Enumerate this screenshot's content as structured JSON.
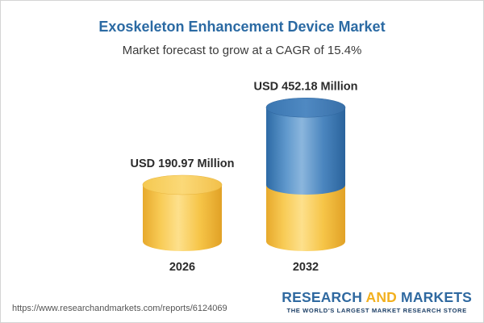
{
  "chart_data": {
    "type": "bar",
    "style": "3d-cylinder",
    "title": "Exoskeleton Enhancement Device Market",
    "subtitle": "Market forecast to grow at a CAGR of 15.4%",
    "categories": [
      "2026",
      "2032"
    ],
    "values": [
      190.97,
      452.18
    ],
    "value_labels": [
      "USD 190.97 Million",
      "USD 452.18 Million"
    ],
    "unit": "USD Million",
    "cagr_percent": 15.4,
    "colors": {
      "base": "#f7c94f",
      "growth": "#3f7cb5",
      "label": "#2b2b2b"
    }
  },
  "footer": {
    "url": "https://www.researchandmarkets.com/reports/6124069",
    "brand_part1": "RESEARCH ",
    "brand_part2": "AND",
    "brand_part3": " MARKETS",
    "tagline": "THE WORLD'S LARGEST MARKET RESEARCH STORE"
  }
}
